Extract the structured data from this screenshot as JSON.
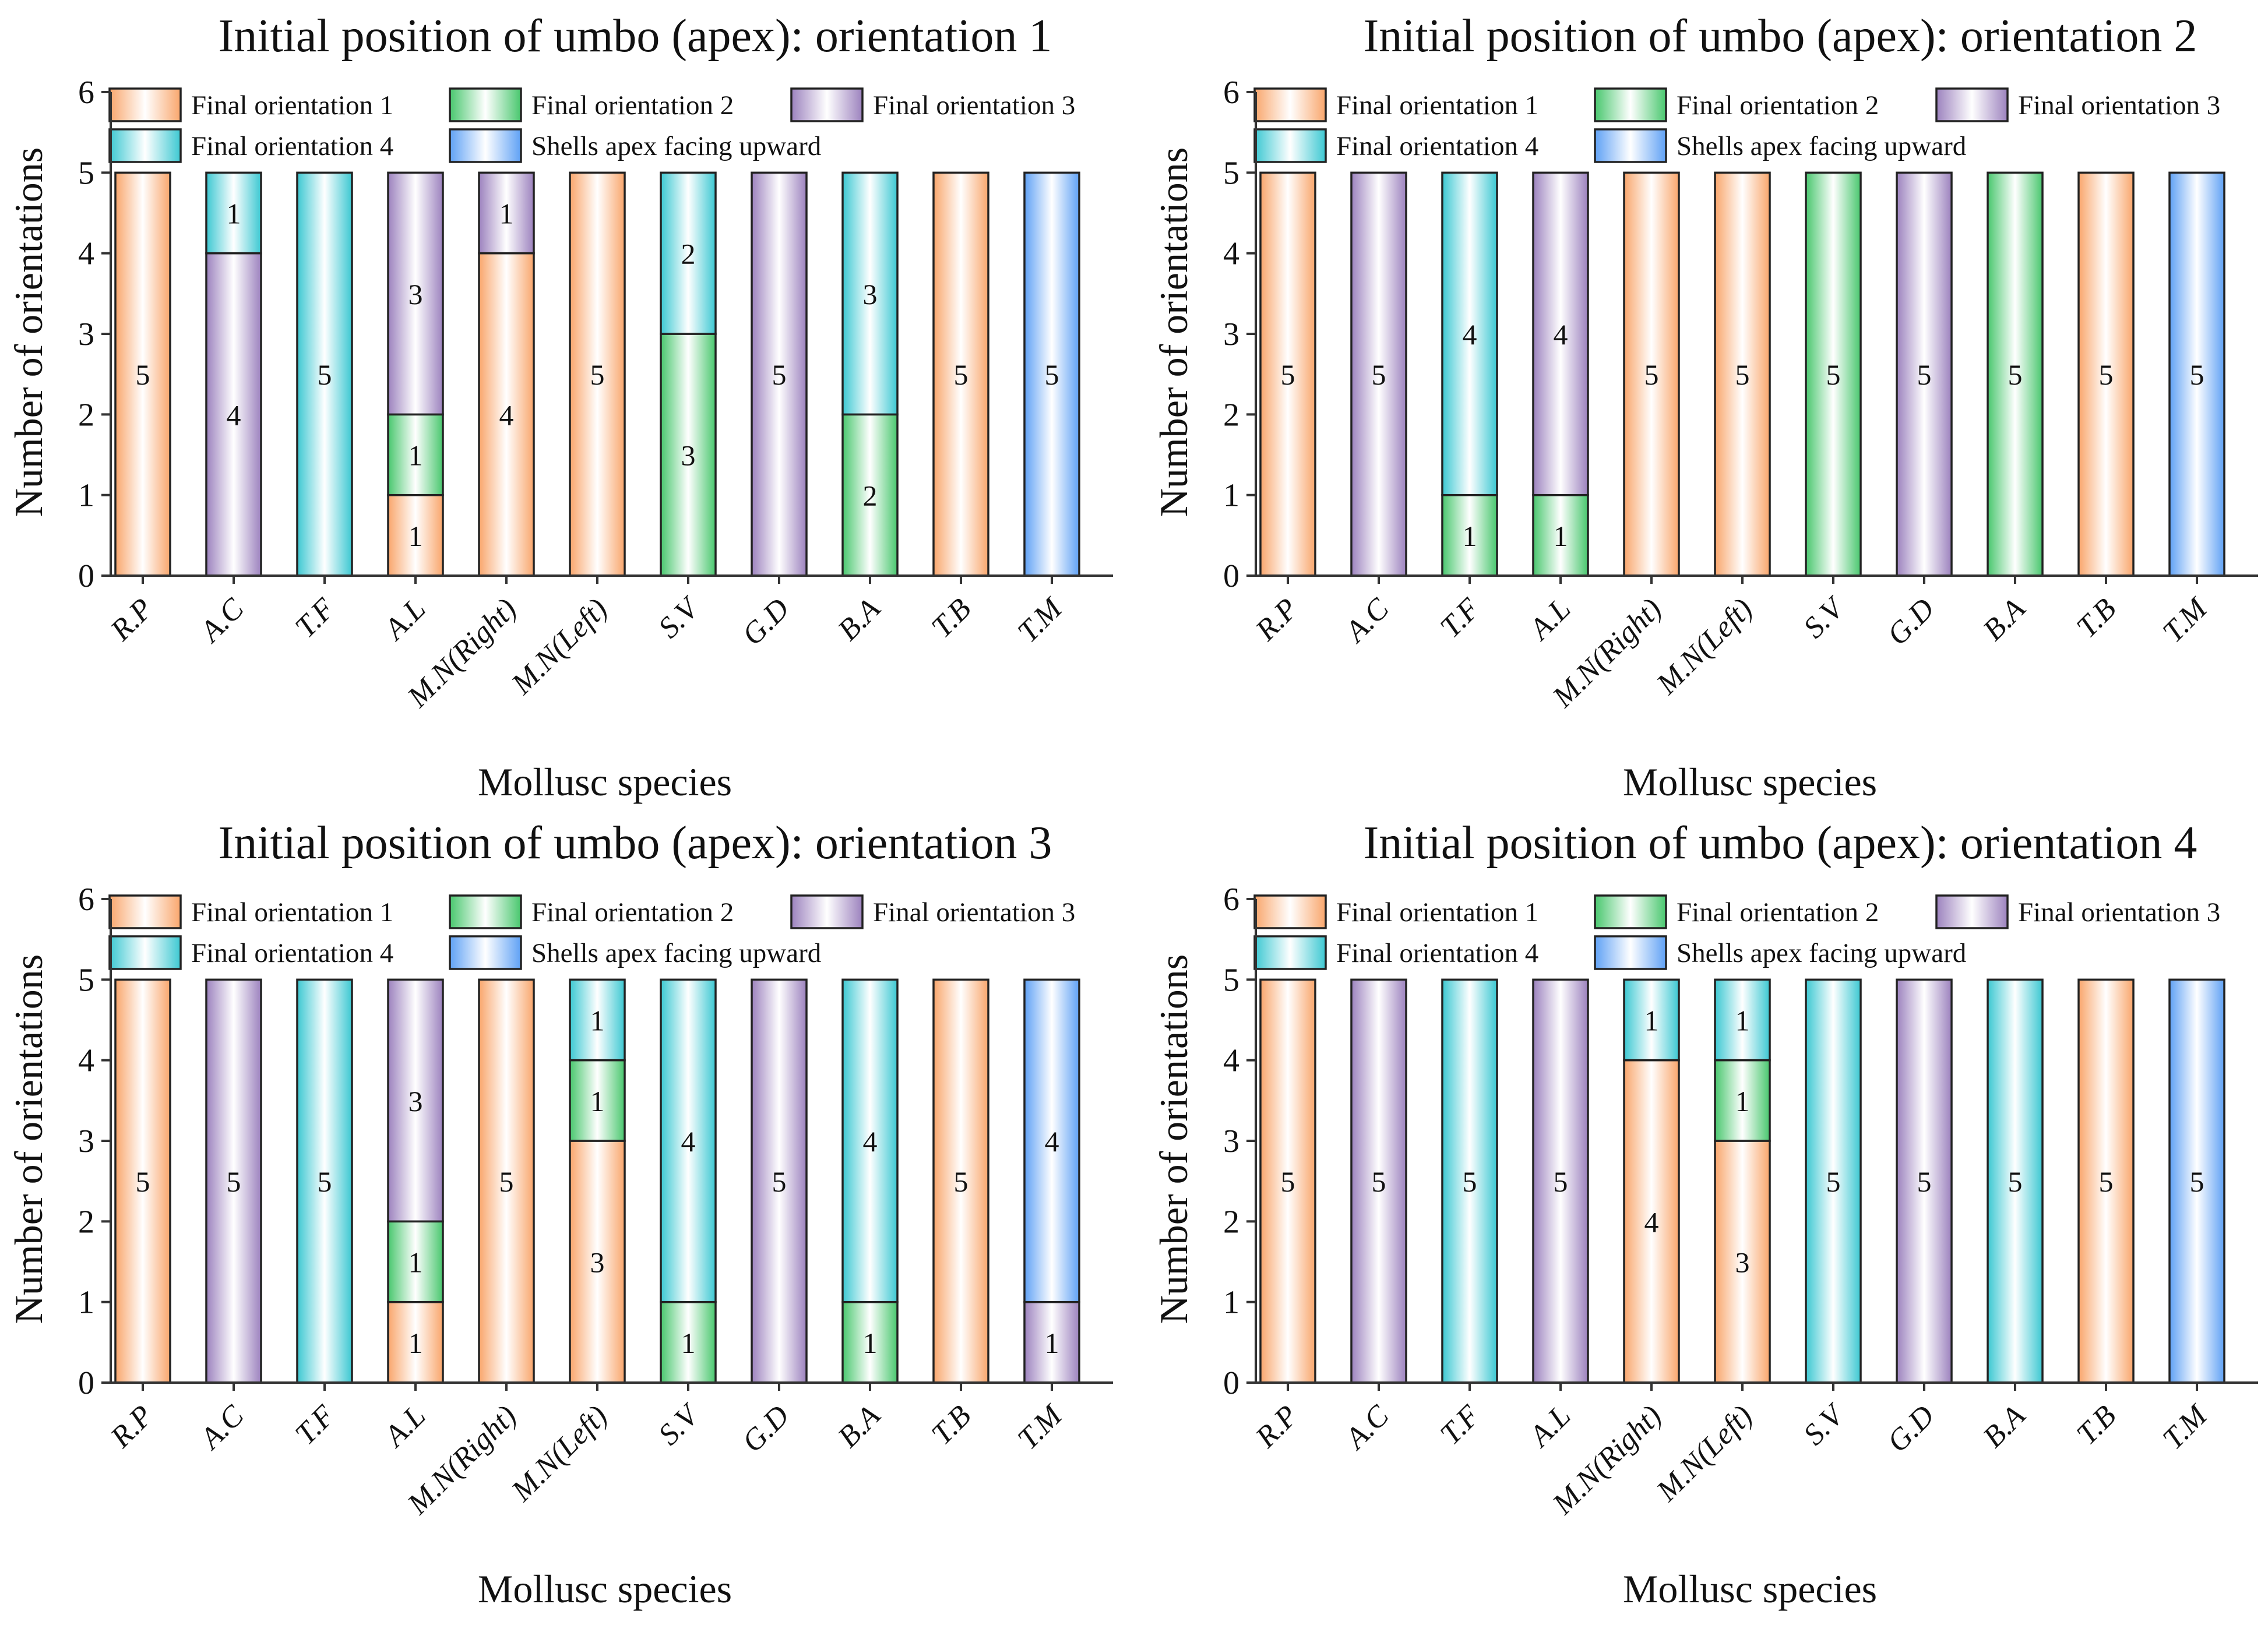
{
  "categories": [
    "R.P",
    "A.C",
    "T.F",
    "A.L",
    "M.N(Right)",
    "M.N(Left)",
    "S.V",
    "G.D",
    "B.A",
    "T.B",
    "T.M"
  ],
  "legend": [
    {
      "key": "fo1",
      "label": "Final orientation 1",
      "color": "#F9A66C"
    },
    {
      "key": "fo2",
      "label": "Final orientation 2",
      "color": "#49C76E"
    },
    {
      "key": "fo3",
      "label": "Final orientation 3",
      "color": "#9C82BE"
    },
    {
      "key": "fo4",
      "label": "Final orientation 4",
      "color": "#3CC8D2"
    },
    {
      "key": "up",
      "label": "Shells apex facing upward",
      "color": "#5FA1F5"
    }
  ],
  "chart_data": [
    {
      "type": "bar",
      "stacked": true,
      "title": "Initial position of umbo (apex): orientation 1",
      "xlabel": "Mollusc species",
      "ylabel": "Number of orientations",
      "ylim": [
        0,
        6
      ],
      "yticks": [
        "0",
        "1",
        "2",
        "3",
        "4",
        "5",
        "6"
      ],
      "stacks": [
        [
          {
            "series": "fo1",
            "value": 5
          }
        ],
        [
          {
            "series": "fo3",
            "value": 4
          },
          {
            "series": "fo4",
            "value": 1
          }
        ],
        [
          {
            "series": "fo4",
            "value": 5
          }
        ],
        [
          {
            "series": "fo1",
            "value": 1
          },
          {
            "series": "fo2",
            "value": 1
          },
          {
            "series": "fo3",
            "value": 3
          }
        ],
        [
          {
            "series": "fo1",
            "value": 4
          },
          {
            "series": "fo3",
            "value": 1
          }
        ],
        [
          {
            "series": "fo1",
            "value": 5
          }
        ],
        [
          {
            "series": "fo2",
            "value": 3
          },
          {
            "series": "fo4",
            "value": 2
          }
        ],
        [
          {
            "series": "fo3",
            "value": 5
          }
        ],
        [
          {
            "series": "fo2",
            "value": 2
          },
          {
            "series": "fo4",
            "value": 3
          }
        ],
        [
          {
            "series": "fo1",
            "value": 5
          }
        ],
        [
          {
            "series": "up",
            "value": 5
          }
        ]
      ]
    },
    {
      "type": "bar",
      "stacked": true,
      "title": "Initial position of umbo (apex): orientation 2",
      "xlabel": "Mollusc species",
      "ylabel": "Number of orientations",
      "ylim": [
        0,
        6
      ],
      "yticks": [
        "0",
        "1",
        "2",
        "3",
        "4",
        "5",
        "6"
      ],
      "stacks": [
        [
          {
            "series": "fo1",
            "value": 5
          }
        ],
        [
          {
            "series": "fo3",
            "value": 5
          }
        ],
        [
          {
            "series": "fo2",
            "value": 1
          },
          {
            "series": "fo4",
            "value": 4
          }
        ],
        [
          {
            "series": "fo2",
            "value": 1
          },
          {
            "series": "fo3",
            "value": 4
          }
        ],
        [
          {
            "series": "fo1",
            "value": 5
          }
        ],
        [
          {
            "series": "fo1",
            "value": 5
          }
        ],
        [
          {
            "series": "fo2",
            "value": 5
          }
        ],
        [
          {
            "series": "fo3",
            "value": 5
          }
        ],
        [
          {
            "series": "fo2",
            "value": 5
          }
        ],
        [
          {
            "series": "fo1",
            "value": 5
          }
        ],
        [
          {
            "series": "up",
            "value": 5
          }
        ]
      ]
    },
    {
      "type": "bar",
      "stacked": true,
      "title": "Initial position of umbo (apex): orientation 3",
      "xlabel": "Mollusc species",
      "ylabel": "Number of orientations",
      "ylim": [
        0,
        6
      ],
      "yticks": [
        "0",
        "1",
        "2",
        "3",
        "4",
        "5",
        "6"
      ],
      "stacks": [
        [
          {
            "series": "fo1",
            "value": 5
          }
        ],
        [
          {
            "series": "fo3",
            "value": 5
          }
        ],
        [
          {
            "series": "fo4",
            "value": 5
          }
        ],
        [
          {
            "series": "fo1",
            "value": 1
          },
          {
            "series": "fo2",
            "value": 1
          },
          {
            "series": "fo3",
            "value": 3
          }
        ],
        [
          {
            "series": "fo1",
            "value": 5
          }
        ],
        [
          {
            "series": "fo1",
            "value": 3
          },
          {
            "series": "fo2",
            "value": 1
          },
          {
            "series": "fo4",
            "value": 1
          }
        ],
        [
          {
            "series": "fo2",
            "value": 1
          },
          {
            "series": "fo4",
            "value": 4
          }
        ],
        [
          {
            "series": "fo3",
            "value": 5
          }
        ],
        [
          {
            "series": "fo2",
            "value": 1
          },
          {
            "series": "fo4",
            "value": 4
          }
        ],
        [
          {
            "series": "fo1",
            "value": 5
          }
        ],
        [
          {
            "series": "fo3",
            "value": 1
          },
          {
            "series": "up",
            "value": 4
          }
        ]
      ]
    },
    {
      "type": "bar",
      "stacked": true,
      "title": "Initial position of umbo (apex): orientation 4",
      "xlabel": "Mollusc species",
      "ylabel": "Number of orientations",
      "ylim": [
        0,
        6
      ],
      "yticks": [
        "0",
        "1",
        "2",
        "3",
        "4",
        "5",
        "6"
      ],
      "stacks": [
        [
          {
            "series": "fo1",
            "value": 5
          }
        ],
        [
          {
            "series": "fo3",
            "value": 5
          }
        ],
        [
          {
            "series": "fo4",
            "value": 5
          }
        ],
        [
          {
            "series": "fo3",
            "value": 5
          }
        ],
        [
          {
            "series": "fo1",
            "value": 4
          },
          {
            "series": "fo4",
            "value": 1
          }
        ],
        [
          {
            "series": "fo1",
            "value": 3
          },
          {
            "series": "fo2",
            "value": 1
          },
          {
            "series": "fo4",
            "value": 1
          }
        ],
        [
          {
            "series": "fo4",
            "value": 5
          }
        ],
        [
          {
            "series": "fo3",
            "value": 5
          }
        ],
        [
          {
            "series": "fo4",
            "value": 5
          }
        ],
        [
          {
            "series": "fo1",
            "value": 5
          }
        ],
        [
          {
            "series": "up",
            "value": 5
          }
        ]
      ]
    }
  ]
}
